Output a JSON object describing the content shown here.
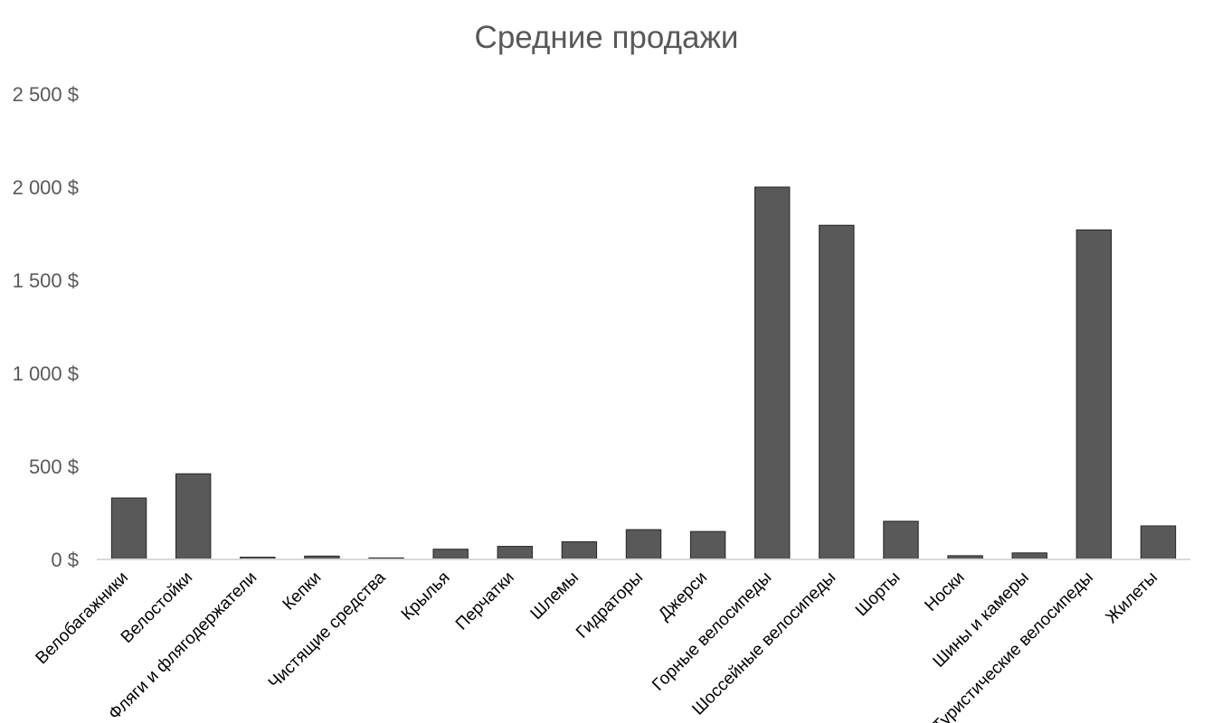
{
  "chart_data": {
    "type": "bar",
    "title": "Средние продажи",
    "xlabel": "",
    "ylabel": "",
    "categories": [
      "Велобагажники",
      "Велостойки",
      "Фляги и флягодержатели",
      "Кепки",
      "Чистящие средства",
      "Крылья",
      "Перчатки",
      "Шлемы",
      "Гидраторы",
      "Джерси",
      "Горные велосипеды",
      "Шоссейные велосипеды",
      "Шорты",
      "Носки",
      "Шины и камеры",
      "Туристические велосипеды",
      "Жилеты"
    ],
    "values": [
      330,
      460,
      12,
      18,
      8,
      55,
      70,
      95,
      160,
      150,
      2000,
      1795,
      205,
      20,
      35,
      1770,
      180
    ],
    "ylim": [
      0,
      2500
    ],
    "yticks": [
      0,
      500,
      1000,
      1500,
      2000,
      2500
    ],
    "ytick_labels": [
      "0 $",
      "500 $",
      "1 000 $",
      "1 500 $",
      "2 000 $",
      "2 500 $"
    ],
    "grid": false,
    "legend": "none",
    "colors": {
      "bar_fill": "#595959",
      "bar_stroke": "#262626",
      "axis_line": "#d9d9d9",
      "tick_label": "#595959",
      "category_label": "#000000",
      "title": "#595959"
    }
  }
}
